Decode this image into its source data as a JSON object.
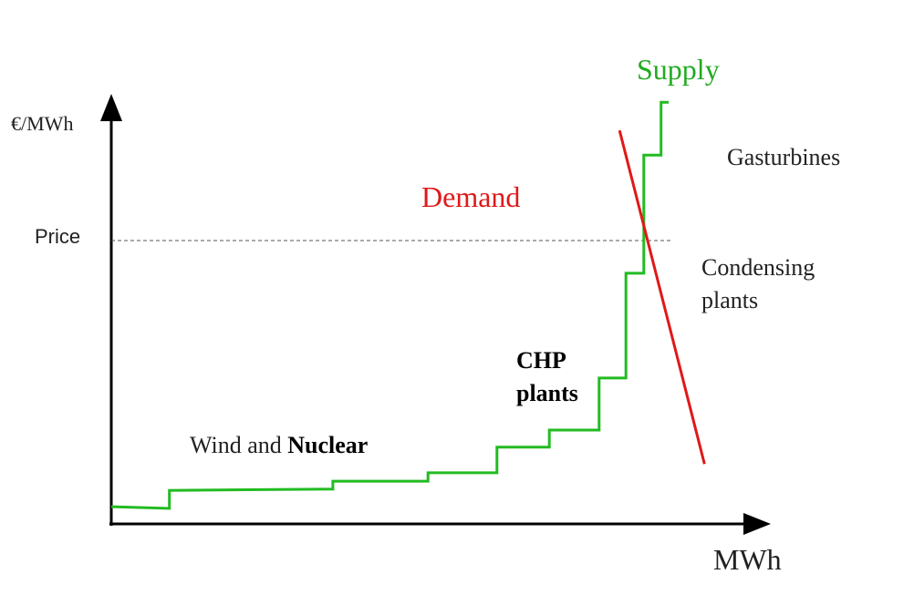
{
  "chart_data": {
    "type": "line",
    "title": "",
    "xlabel": "MWh",
    "ylabel": "€/MWh",
    "xlim": [
      0,
      100
    ],
    "ylim": [
      0,
      100
    ],
    "grid": false,
    "price_label": "Price",
    "price_level": 67.6,
    "series": [
      {
        "name": "Supply",
        "color": "#22bb22",
        "points": [
          [
            0,
            4.1
          ],
          [
            9.1,
            3.7
          ],
          [
            9.1,
            8.0
          ],
          [
            34.7,
            8.3
          ],
          [
            34.7,
            10.2
          ],
          [
            49.6,
            10.2
          ],
          [
            49.6,
            12.2
          ],
          [
            60.4,
            12.2
          ],
          [
            60.4,
            18.3
          ],
          [
            68.6,
            18.3
          ],
          [
            68.6,
            22.4
          ],
          [
            76.4,
            22.4
          ],
          [
            76.4,
            34.8
          ],
          [
            80.6,
            34.8
          ],
          [
            80.6,
            59.8
          ],
          [
            83.4,
            59.8
          ],
          [
            83.4,
            88.0
          ],
          [
            86.1,
            88.0
          ],
          [
            86.1,
            100.6
          ],
          [
            87.3,
            100.6
          ]
        ]
      },
      {
        "name": "Demand",
        "color": "#e01818",
        "points": [
          [
            79.6,
            93.9
          ],
          [
            92.9,
            14.3
          ]
        ]
      }
    ],
    "annotations": {
      "wind_prefix": "Wind and ",
      "wind_bold": "Nuclear",
      "chp_line1": "CHP",
      "chp_line2": "plants",
      "condensing_line1": "Condensing",
      "condensing_line2": "plants",
      "gasturbines": "Gasturbines"
    }
  }
}
